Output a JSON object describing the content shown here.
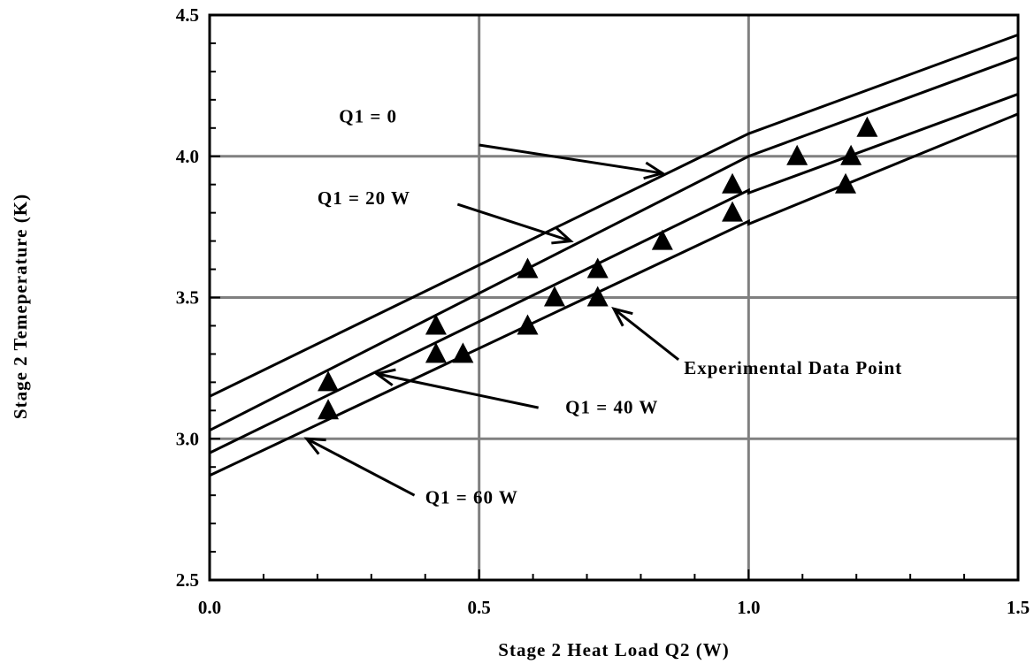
{
  "chart_data": {
    "type": "line",
    "title": "",
    "xlabel": "Stage 2 Heat Load Q2 (W)",
    "ylabel": "Stage 2 Temeperature (K)",
    "xlim": [
      0,
      1.5
    ],
    "ylim": [
      2.5,
      4.5
    ],
    "x_ticks": [
      "0.0",
      "0.5",
      "1.0",
      "1.5"
    ],
    "y_ticks": [
      "2.5",
      "3.0",
      "3.5",
      "4.0",
      "4.5"
    ],
    "grid": true,
    "series": [
      {
        "name": "Q1 = 0",
        "x": [
          0,
          1.0,
          1.5
        ],
        "y": [
          3.15,
          4.08,
          4.43
        ]
      },
      {
        "name": "Q1 = 20 W",
        "x": [
          0,
          1.0,
          1.5
        ],
        "y": [
          3.03,
          4.0,
          4.35
        ]
      },
      {
        "name": "Q1 = 40 W",
        "x": [
          0,
          1.0,
          1.0,
          1.5
        ],
        "y": [
          2.95,
          3.88,
          3.87,
          4.22
        ]
      },
      {
        "name": "Q1 = 60 W",
        "x": [
          0,
          1.0,
          1.0,
          1.5
        ],
        "y": [
          2.87,
          3.77,
          3.76,
          4.15
        ]
      }
    ],
    "scatter": {
      "name": "Experimental Data Point",
      "marker": "triangle",
      "points": [
        [
          0.22,
          3.2
        ],
        [
          0.22,
          3.1
        ],
        [
          0.42,
          3.4
        ],
        [
          0.42,
          3.3
        ],
        [
          0.47,
          3.3
        ],
        [
          0.59,
          3.6
        ],
        [
          0.59,
          3.4
        ],
        [
          0.64,
          3.5
        ],
        [
          0.72,
          3.6
        ],
        [
          0.72,
          3.5
        ],
        [
          0.84,
          3.7
        ],
        [
          0.97,
          3.9
        ],
        [
          0.97,
          3.8
        ],
        [
          1.09,
          4.0
        ],
        [
          1.18,
          3.9
        ],
        [
          1.19,
          4.0
        ],
        [
          1.22,
          4.1
        ]
      ]
    },
    "annotations": [
      {
        "text": "Q1 = 0",
        "text_at": [
          0.24,
          4.12
        ],
        "arrow_from": [
          0.5,
          4.04
        ],
        "arrow_to": [
          0.84,
          3.94
        ]
      },
      {
        "text": "Q1 = 20 W",
        "text_at": [
          0.2,
          3.83
        ],
        "arrow_from": [
          0.46,
          3.83
        ],
        "arrow_to": [
          0.67,
          3.7
        ]
      },
      {
        "text": "Q1 = 40 W",
        "text_at": [
          0.66,
          3.09
        ],
        "arrow_from": [
          0.61,
          3.11
        ],
        "arrow_to": [
          0.31,
          3.23
        ]
      },
      {
        "text": "Q1 = 60 W",
        "text_at": [
          0.4,
          2.77
        ],
        "arrow_from": [
          0.38,
          2.8
        ],
        "arrow_to": [
          0.18,
          3.0
        ]
      },
      {
        "text": "Experimental Data Point",
        "text_at": [
          0.88,
          3.23
        ],
        "arrow_from": [
          0.87,
          3.28
        ],
        "arrow_to": [
          0.75,
          3.46
        ]
      }
    ]
  }
}
